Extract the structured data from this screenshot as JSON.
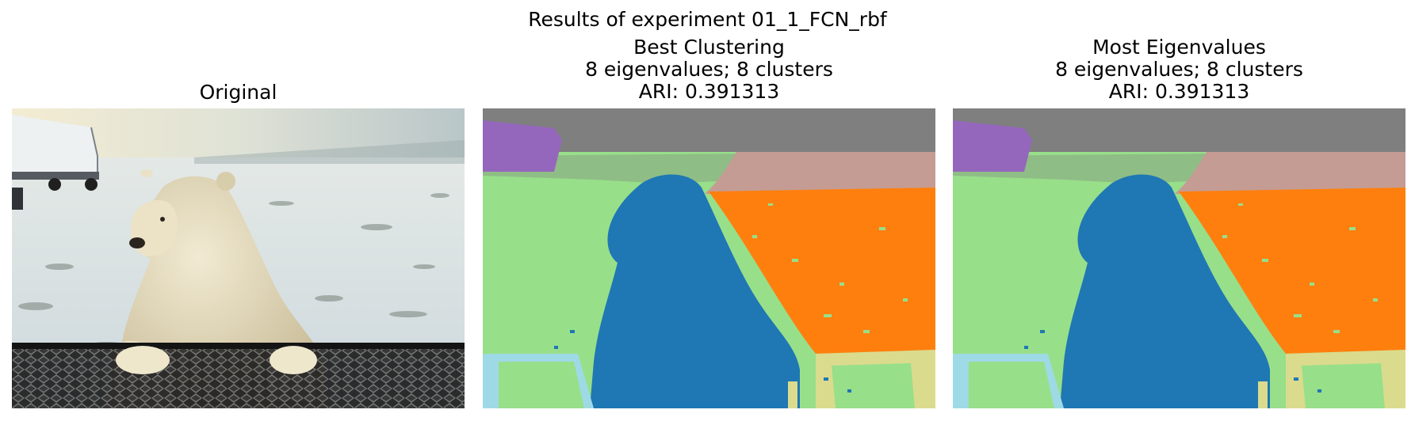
{
  "figure": {
    "suptitle": "Results of experiment 01_1_FCN_rbf"
  },
  "panels": [
    {
      "title_lines": [
        "Original"
      ],
      "image": "polar-bear-photo"
    },
    {
      "title_lines": [
        "Best Clustering",
        "8 eigenvalues; 8 clusters",
        "ARI: 0.391313"
      ],
      "image": "segmentation-map"
    },
    {
      "title_lines": [
        "Most Eigenvalues",
        "8 eigenvalues; 8 clusters",
        "ARI: 0.391313"
      ],
      "image": "segmentation-map"
    }
  ],
  "cluster_colors": {
    "sky": "#7f7f7f",
    "truck": "#9467bd",
    "far-snow": "#c49c94",
    "snow": "#ff7f0e",
    "background": "#98df8a",
    "bear": "#1f77b4",
    "rail-left": "#9edae5",
    "rail-right": "#dbdb8d"
  }
}
